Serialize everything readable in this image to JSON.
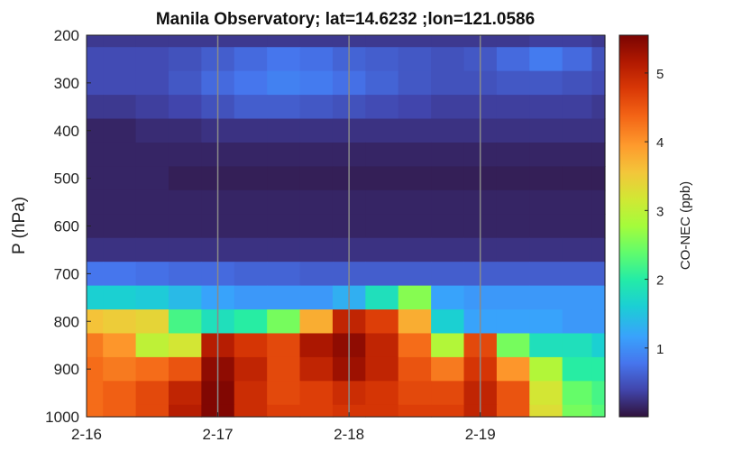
{
  "chart_data": {
    "type": "heatmap",
    "title": "Manila Observatory; lat=14.6232 ;lon=121.0586",
    "xlabel": "",
    "ylabel": "P (hPa)",
    "x_ticks": [
      "2-16",
      "2-17",
      "2-18",
      "2-19"
    ],
    "xlim_days": [
      0,
      3.95
    ],
    "y_ticks": [
      200,
      300,
      400,
      500,
      600,
      700,
      800,
      900,
      1000
    ],
    "ylim": [
      200,
      1000
    ],
    "y_reversed": true,
    "vertical_lines_at": [
      "2-17",
      "2-18",
      "2-19"
    ],
    "colorbar": {
      "label": "CO-NEC (ppb)",
      "ticks": [
        1,
        2,
        3,
        4,
        5
      ],
      "range": [
        0,
        5.55
      ],
      "colormap": "turbo"
    },
    "pressure_levels": [
      200,
      250,
      300,
      350,
      400,
      450,
      500,
      550,
      600,
      650,
      700,
      750,
      800,
      850,
      900,
      950,
      1000
    ],
    "time_days": [
      0,
      0.25,
      0.5,
      0.75,
      1,
      1.25,
      1.5,
      1.75,
      2,
      2.25,
      2.5,
      2.75,
      3,
      3.25,
      3.5,
      3.75,
      3.95
    ],
    "values": [
      [
        0.3,
        0.3,
        0.3,
        0.3,
        0.3,
        0.3,
        0.3,
        0.3,
        0.3,
        0.3,
        0.3,
        0.3,
        0.3,
        0.3,
        0.35,
        0.35,
        0.3
      ],
      [
        0.45,
        0.45,
        0.45,
        0.5,
        0.6,
        0.7,
        0.8,
        0.75,
        0.65,
        0.6,
        0.55,
        0.5,
        0.55,
        0.7,
        0.85,
        0.7,
        0.5
      ],
      [
        0.45,
        0.45,
        0.45,
        0.55,
        0.7,
        0.8,
        0.9,
        0.85,
        0.75,
        0.65,
        0.55,
        0.5,
        0.5,
        0.55,
        0.55,
        0.5,
        0.45
      ],
      [
        0.3,
        0.3,
        0.35,
        0.4,
        0.5,
        0.6,
        0.6,
        0.55,
        0.5,
        0.45,
        0.4,
        0.35,
        0.35,
        0.35,
        0.35,
        0.35,
        0.3
      ],
      [
        0.15,
        0.15,
        0.2,
        0.2,
        0.25,
        0.25,
        0.25,
        0.25,
        0.25,
        0.25,
        0.25,
        0.25,
        0.25,
        0.25,
        0.25,
        0.25,
        0.25
      ],
      [
        0.15,
        0.15,
        0.15,
        0.15,
        0.15,
        0.15,
        0.15,
        0.15,
        0.15,
        0.15,
        0.15,
        0.15,
        0.15,
        0.15,
        0.15,
        0.15,
        0.15
      ],
      [
        0.15,
        0.15,
        0.15,
        0.1,
        0.1,
        0.1,
        0.1,
        0.1,
        0.1,
        0.1,
        0.1,
        0.1,
        0.1,
        0.1,
        0.1,
        0.1,
        0.1
      ],
      [
        0.15,
        0.15,
        0.15,
        0.15,
        0.15,
        0.15,
        0.15,
        0.15,
        0.15,
        0.15,
        0.15,
        0.15,
        0.15,
        0.15,
        0.15,
        0.15,
        0.15
      ],
      [
        0.15,
        0.15,
        0.15,
        0.15,
        0.15,
        0.15,
        0.15,
        0.15,
        0.15,
        0.15,
        0.15,
        0.15,
        0.15,
        0.15,
        0.15,
        0.15,
        0.15
      ],
      [
        0.25,
        0.25,
        0.25,
        0.25,
        0.25,
        0.25,
        0.25,
        0.25,
        0.25,
        0.25,
        0.25,
        0.25,
        0.25,
        0.25,
        0.25,
        0.25,
        0.25
      ],
      [
        0.8,
        0.8,
        0.75,
        0.7,
        0.7,
        0.65,
        0.65,
        0.6,
        0.6,
        0.6,
        0.6,
        0.6,
        0.6,
        0.6,
        0.6,
        0.6,
        0.6
      ],
      [
        1.6,
        1.6,
        1.55,
        1.4,
        1.2,
        1.1,
        1.1,
        1.1,
        1.3,
        1.8,
        2.6,
        1.2,
        1.1,
        1.1,
        1.1,
        1.1,
        1.1
      ],
      [
        3.6,
        3.5,
        3.4,
        2.2,
        1.8,
        2.0,
        2.5,
        3.8,
        5.0,
        4.7,
        3.8,
        1.6,
        1.2,
        1.2,
        1.2,
        1.1,
        1.1
      ],
      [
        4.2,
        4.0,
        3.0,
        3.2,
        5.1,
        4.8,
        4.6,
        5.2,
        5.4,
        5.0,
        4.3,
        2.9,
        4.6,
        2.5,
        1.8,
        1.8,
        1.6
      ],
      [
        4.3,
        4.2,
        4.3,
        4.5,
        5.4,
        5.0,
        4.6,
        5.0,
        5.3,
        5.0,
        4.5,
        4.2,
        4.8,
        4.0,
        2.9,
        2.0,
        2.0
      ],
      [
        4.3,
        4.4,
        4.6,
        5.0,
        5.5,
        4.9,
        4.6,
        4.7,
        4.9,
        4.8,
        4.6,
        4.6,
        5.0,
        4.5,
        3.2,
        2.4,
        2.2
      ],
      [
        4.3,
        4.4,
        4.6,
        5.1,
        5.5,
        4.9,
        4.7,
        4.7,
        4.8,
        4.8,
        4.7,
        4.7,
        5.0,
        4.5,
        3.3,
        2.5,
        2.3
      ]
    ]
  }
}
